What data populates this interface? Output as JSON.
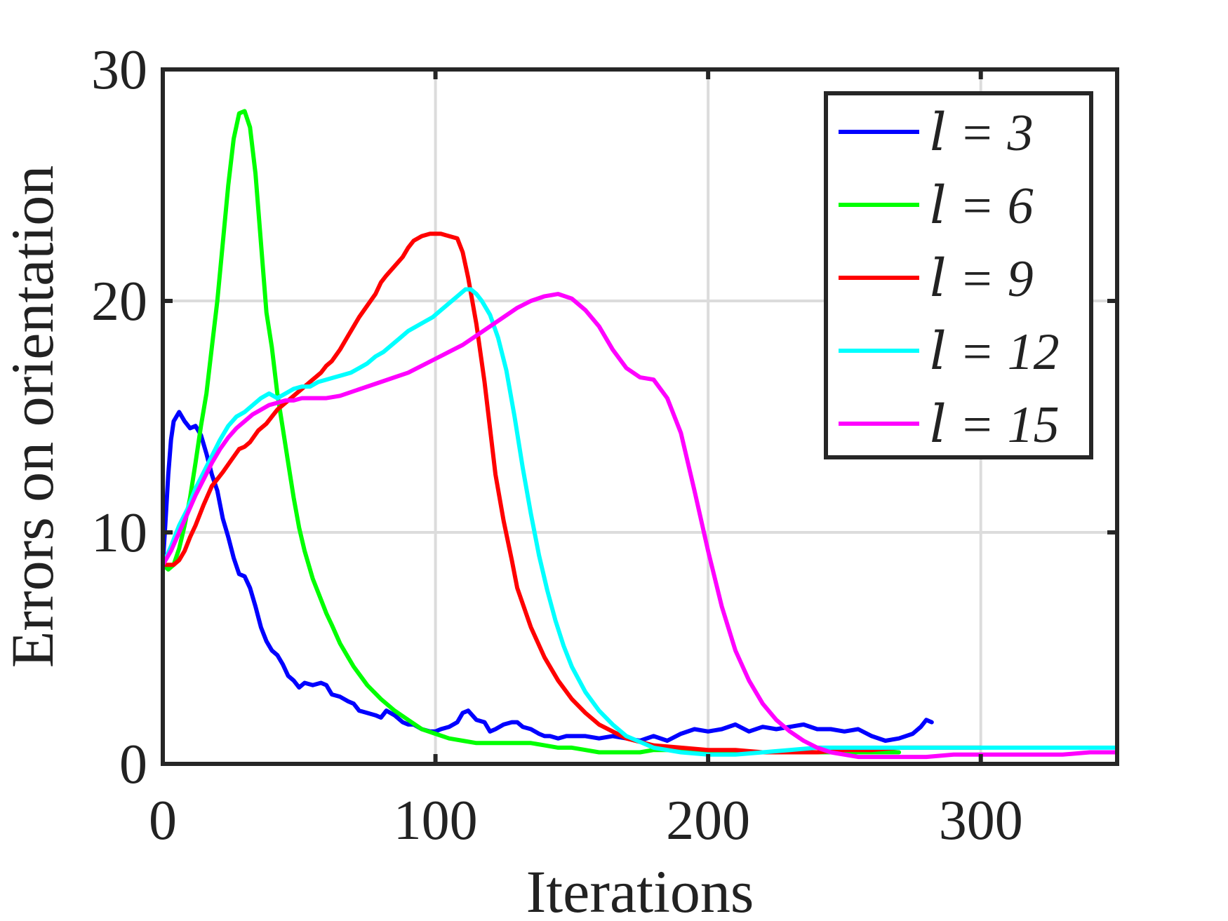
{
  "chart_data": {
    "type": "line",
    "xlabel": "Iterations",
    "ylabel": "Errors on orientation",
    "xlim": [
      0,
      350
    ],
    "ylim": [
      0,
      30
    ],
    "xticks": [
      0,
      100,
      200,
      300
    ],
    "yticks": [
      0,
      10,
      20,
      30
    ],
    "grid": true,
    "legend_position": "top-right",
    "series": [
      {
        "name": "l = 3",
        "legend_label": "𝑙 = 3",
        "color": "#0000ff",
        "x": [
          0,
          1,
          2,
          3,
          4,
          5,
          6,
          7,
          8,
          10,
          12,
          14,
          16,
          18,
          20,
          22,
          24,
          26,
          28,
          30,
          32,
          34,
          36,
          38,
          40,
          42,
          44,
          46,
          48,
          50,
          52,
          55,
          58,
          60,
          62,
          65,
          68,
          70,
          72,
          75,
          78,
          80,
          82,
          85,
          88,
          90,
          92,
          95,
          98,
          100,
          102,
          105,
          108,
          110,
          112,
          115,
          118,
          120,
          122,
          125,
          128,
          130,
          132,
          135,
          138,
          140,
          142,
          145,
          148,
          150,
          155,
          160,
          165,
          170,
          175,
          180,
          185,
          190,
          195,
          200,
          205,
          210,
          215,
          220,
          225,
          230,
          235,
          240,
          245,
          250,
          255,
          260,
          265,
          270,
          275,
          278,
          280,
          282
        ],
        "y": [
          8.6,
          10.5,
          12.5,
          14.0,
          14.8,
          15.0,
          15.2,
          15.0,
          14.8,
          14.5,
          14.6,
          14.2,
          13.4,
          12.5,
          11.8,
          10.6,
          9.8,
          8.9,
          8.2,
          8.1,
          7.6,
          6.8,
          5.9,
          5.3,
          4.9,
          4.7,
          4.3,
          3.8,
          3.6,
          3.3,
          3.5,
          3.4,
          3.5,
          3.4,
          3.0,
          2.9,
          2.7,
          2.6,
          2.3,
          2.2,
          2.1,
          2.0,
          2.3,
          2.1,
          1.8,
          1.7,
          1.7,
          1.5,
          1.4,
          1.4,
          1.5,
          1.6,
          1.8,
          2.2,
          2.3,
          1.9,
          1.8,
          1.4,
          1.5,
          1.7,
          1.8,
          1.8,
          1.6,
          1.5,
          1.3,
          1.2,
          1.2,
          1.1,
          1.2,
          1.2,
          1.2,
          1.1,
          1.2,
          1.1,
          1.0,
          1.2,
          1.0,
          1.3,
          1.5,
          1.4,
          1.5,
          1.7,
          1.4,
          1.6,
          1.5,
          1.6,
          1.7,
          1.5,
          1.5,
          1.4,
          1.5,
          1.2,
          1.0,
          1.1,
          1.3,
          1.6,
          1.9,
          1.8
        ]
      },
      {
        "name": "l = 6",
        "legend_label": "𝑙 = 6",
        "color": "#00ff00",
        "x": [
          0,
          2,
          4,
          6,
          8,
          10,
          12,
          14,
          16,
          18,
          20,
          22,
          24,
          26,
          28,
          30,
          32,
          34,
          36,
          38,
          40,
          42,
          44,
          46,
          48,
          50,
          52,
          55,
          58,
          60,
          62,
          65,
          68,
          70,
          75,
          80,
          85,
          90,
          95,
          100,
          105,
          110,
          115,
          120,
          125,
          130,
          135,
          140,
          145,
          150,
          155,
          160,
          165,
          170,
          175,
          180,
          190,
          200,
          210,
          220,
          230,
          240,
          250,
          260,
          270
        ],
        "y": [
          8.6,
          8.4,
          8.6,
          9.3,
          10.3,
          11.5,
          13.0,
          14.6,
          16.0,
          18.0,
          20.0,
          22.5,
          25.0,
          27.0,
          28.1,
          28.2,
          27.5,
          25.5,
          22.5,
          19.5,
          18.0,
          16.0,
          14.5,
          13.0,
          11.5,
          10.2,
          9.2,
          8.0,
          7.1,
          6.5,
          6.0,
          5.2,
          4.6,
          4.2,
          3.4,
          2.8,
          2.3,
          1.9,
          1.5,
          1.3,
          1.1,
          1.0,
          0.9,
          0.9,
          0.9,
          0.9,
          0.9,
          0.8,
          0.7,
          0.7,
          0.6,
          0.5,
          0.5,
          0.5,
          0.5,
          0.6,
          0.6,
          0.5,
          0.5,
          0.5,
          0.5,
          0.5,
          0.5,
          0.5,
          0.5
        ]
      },
      {
        "name": "l = 9",
        "legend_label": "𝑙 = 9",
        "color": "#ff0000",
        "x": [
          0,
          2,
          4,
          6,
          8,
          10,
          12,
          15,
          18,
          20,
          22,
          25,
          28,
          30,
          32,
          35,
          38,
          40,
          42,
          45,
          48,
          50,
          52,
          55,
          58,
          60,
          62,
          65,
          68,
          70,
          72,
          75,
          78,
          80,
          82,
          85,
          88,
          90,
          92,
          95,
          98,
          100,
          102,
          105,
          108,
          110,
          112,
          115,
          118,
          120,
          122,
          125,
          128,
          130,
          135,
          140,
          145,
          150,
          155,
          160,
          165,
          170,
          180,
          190,
          200,
          210,
          220,
          230,
          240,
          250,
          260,
          270,
          280,
          290,
          300
        ],
        "y": [
          8.6,
          8.6,
          8.6,
          8.8,
          9.2,
          9.8,
          10.3,
          11.2,
          12.0,
          12.3,
          12.6,
          13.1,
          13.6,
          13.7,
          13.9,
          14.4,
          14.7,
          15.0,
          15.3,
          15.6,
          15.9,
          16.1,
          16.3,
          16.6,
          16.9,
          17.2,
          17.4,
          17.9,
          18.5,
          18.9,
          19.3,
          19.8,
          20.3,
          20.8,
          21.1,
          21.5,
          21.9,
          22.3,
          22.6,
          22.8,
          22.9,
          22.9,
          22.9,
          22.8,
          22.7,
          22.1,
          21.0,
          19.0,
          16.5,
          14.5,
          12.5,
          10.5,
          8.8,
          7.6,
          5.9,
          4.6,
          3.6,
          2.8,
          2.2,
          1.7,
          1.4,
          1.1,
          0.8,
          0.7,
          0.6,
          0.6,
          0.5,
          0.5,
          0.5,
          0.6,
          0.6,
          0.7,
          0.7,
          0.7,
          0.7
        ]
      },
      {
        "name": "l = 12",
        "legend_label": "𝑙 = 12",
        "color": "#00ffff",
        "x": [
          0,
          3,
          6,
          9,
          12,
          15,
          18,
          21,
          24,
          27,
          30,
          33,
          36,
          39,
          42,
          45,
          48,
          51,
          54,
          57,
          60,
          63,
          66,
          69,
          72,
          75,
          78,
          81,
          84,
          87,
          90,
          93,
          96,
          99,
          102,
          105,
          108,
          111,
          113,
          115,
          117,
          120,
          123,
          126,
          129,
          132,
          135,
          138,
          141,
          144,
          147,
          150,
          155,
          160,
          165,
          170,
          180,
          190,
          200,
          210,
          220,
          230,
          240,
          250,
          260,
          270,
          280,
          290,
          300,
          320,
          340,
          350
        ],
        "y": [
          8.6,
          9.4,
          10.3,
          11.0,
          11.9,
          12.6,
          13.3,
          14.0,
          14.6,
          15.0,
          15.2,
          15.5,
          15.8,
          16.0,
          15.8,
          16.0,
          16.2,
          16.3,
          16.3,
          16.5,
          16.6,
          16.7,
          16.8,
          16.9,
          17.1,
          17.3,
          17.6,
          17.8,
          18.1,
          18.4,
          18.7,
          18.9,
          19.1,
          19.3,
          19.6,
          19.9,
          20.2,
          20.5,
          20.5,
          20.3,
          20.0,
          19.4,
          18.4,
          17.0,
          15.0,
          12.8,
          10.8,
          9.0,
          7.5,
          6.2,
          5.1,
          4.2,
          3.1,
          2.3,
          1.7,
          1.2,
          0.7,
          0.5,
          0.4,
          0.4,
          0.5,
          0.6,
          0.7,
          0.7,
          0.7,
          0.7,
          0.7,
          0.7,
          0.7,
          0.7,
          0.7,
          0.7
        ]
      },
      {
        "name": "l = 15",
        "legend_label": "𝑙 = 15",
        "color": "#ff00ff",
        "x": [
          0,
          3,
          6,
          9,
          12,
          15,
          18,
          21,
          24,
          27,
          30,
          33,
          36,
          39,
          42,
          45,
          48,
          51,
          54,
          57,
          60,
          65,
          70,
          75,
          80,
          85,
          90,
          95,
          100,
          105,
          110,
          115,
          120,
          125,
          130,
          135,
          140,
          145,
          150,
          155,
          160,
          165,
          170,
          175,
          180,
          185,
          190,
          195,
          200,
          205,
          210,
          215,
          220,
          225,
          230,
          235,
          240,
          245,
          250,
          255,
          260,
          270,
          280,
          290,
          300,
          310,
          320,
          330,
          340,
          350
        ],
        "y": [
          8.6,
          9.2,
          10.0,
          10.8,
          11.6,
          12.3,
          13.0,
          13.6,
          14.1,
          14.5,
          14.8,
          15.1,
          15.3,
          15.5,
          15.6,
          15.7,
          15.7,
          15.8,
          15.8,
          15.8,
          15.8,
          15.9,
          16.1,
          16.3,
          16.5,
          16.7,
          16.9,
          17.2,
          17.5,
          17.8,
          18.1,
          18.5,
          18.9,
          19.3,
          19.7,
          20.0,
          20.2,
          20.3,
          20.1,
          19.6,
          18.9,
          17.9,
          17.1,
          16.7,
          16.6,
          15.8,
          14.3,
          11.8,
          9.2,
          6.8,
          4.9,
          3.6,
          2.6,
          1.9,
          1.4,
          1.0,
          0.7,
          0.5,
          0.4,
          0.3,
          0.3,
          0.3,
          0.3,
          0.4,
          0.4,
          0.4,
          0.4,
          0.4,
          0.5,
          0.5
        ]
      }
    ]
  }
}
